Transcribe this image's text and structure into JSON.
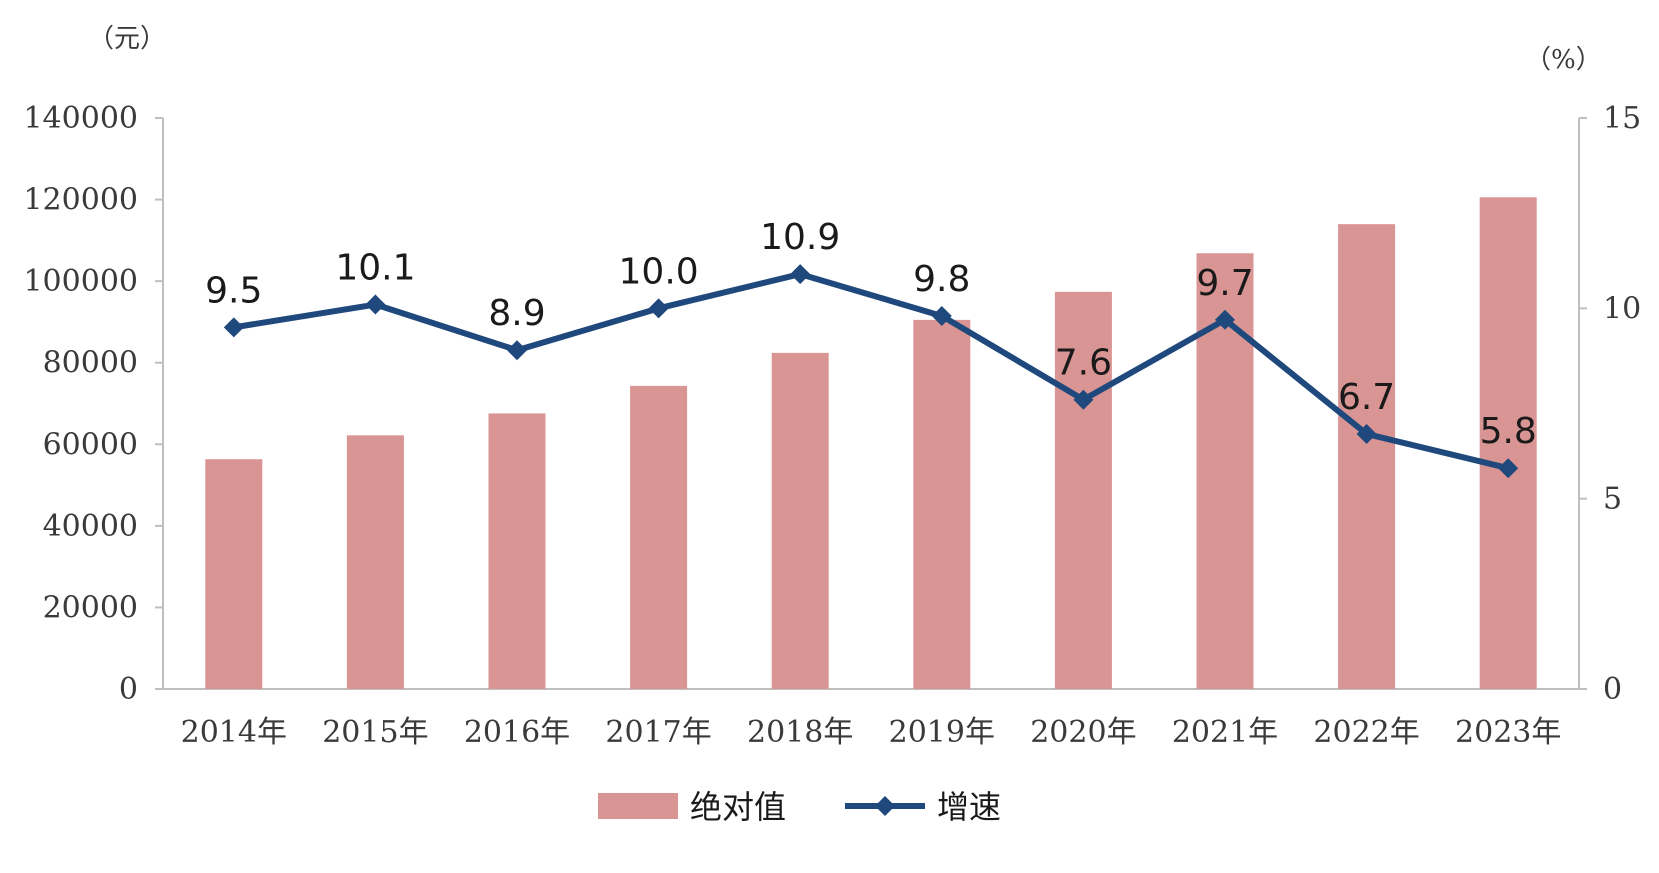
{
  "chart_data": {
    "type": "bar",
    "categories": [
      "2014年",
      "2015年",
      "2016年",
      "2017年",
      "2018年",
      "2019年",
      "2020年",
      "2021年",
      "2022年",
      "2023年"
    ],
    "series": [
      {
        "name": "绝对值",
        "type": "bar",
        "axis": "left",
        "color": "#D99594",
        "values": [
          56339,
          62195,
          67569,
          74318,
          82413,
          90501,
          97379,
          106837,
          113973,
          120563
        ]
      },
      {
        "name": "增速",
        "type": "line",
        "axis": "right",
        "color": "#1F497D",
        "marker": "diamond",
        "values": [
          9.5,
          10.1,
          8.9,
          10.0,
          10.9,
          9.8,
          7.6,
          9.7,
          6.7,
          5.8
        ],
        "labels": [
          "9.5",
          "10.1",
          "8.9",
          "10.0",
          "10.9",
          "9.8",
          "7.6",
          "9.7",
          "6.7",
          "5.8"
        ]
      }
    ],
    "left_axis": {
      "unit": "（元）",
      "ylim": [
        0,
        140000
      ],
      "ticks": [
        "0",
        "20000",
        "40000",
        "60000",
        "80000",
        "100000",
        "120000",
        "140000"
      ]
    },
    "right_axis": {
      "unit": "（%）",
      "ylim": [
        0,
        15
      ],
      "ticks": [
        "0",
        "5",
        "10",
        "15"
      ]
    },
    "grid": false,
    "legend_position": "bottom"
  }
}
